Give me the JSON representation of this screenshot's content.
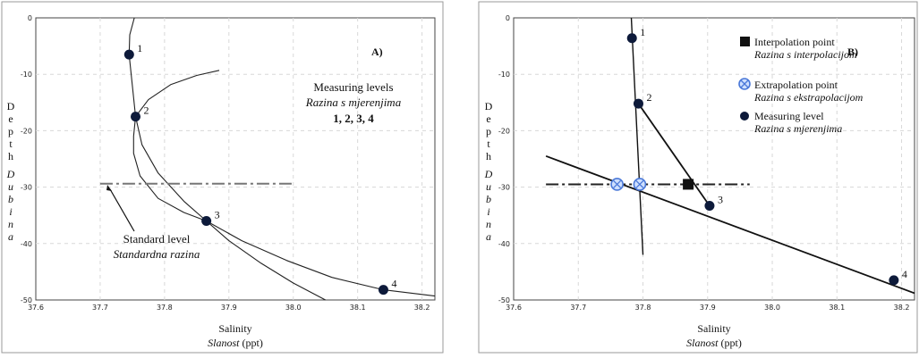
{
  "chart_data": [
    {
      "type": "line",
      "panel_label": "A)",
      "xlabel": "Salinity",
      "xlabel_alt": "Slanost",
      "xlabel_unit": "(ppt)",
      "ylabel": "Depth",
      "ylabel_alt": "Dubina",
      "xlim": [
        37.6,
        38.22
      ],
      "ylim": [
        0,
        50
      ],
      "y_inverted": true,
      "xticks": [
        "37.6",
        "37.7",
        "37.8",
        "37.9",
        "38.0",
        "38.1",
        "38.2"
      ],
      "yticks": [
        "0",
        "-10",
        "-20",
        "-30",
        "-40",
        "-50"
      ],
      "grid": true,
      "points": [
        {
          "label": "1",
          "x": 37.745,
          "y": 6.5
        },
        {
          "label": "2",
          "x": 37.755,
          "y": 17.5
        },
        {
          "label": "3",
          "x": 37.865,
          "y": 36.0
        },
        {
          "label": "4",
          "x": 38.14,
          "y": 48.2
        }
      ],
      "curves": [
        {
          "name": "profile",
          "x": [
            37.753,
            37.746,
            37.745,
            37.75,
            37.755,
            37.752,
            37.752,
            37.762,
            37.79,
            37.83,
            37.865,
            37.92,
            37.99,
            38.06,
            38.14,
            38.22
          ],
          "y": [
            0,
            3,
            6.5,
            12,
            17.5,
            21,
            24,
            28,
            32,
            34.5,
            36,
            39.5,
            43,
            46,
            48.2,
            49.3
          ]
        },
        {
          "name": "upper-branch",
          "x": [
            37.755,
            37.775,
            37.81,
            37.85,
            37.885
          ],
          "y": [
            17.5,
            14.5,
            11.8,
            10.2,
            9.3
          ]
        },
        {
          "name": "lower-branch",
          "x": [
            37.755,
            37.765,
            37.79,
            37.83,
            37.865,
            37.9,
            37.95,
            38.0,
            38.05
          ],
          "y": [
            17.5,
            22.5,
            27.5,
            32.5,
            36,
            39.5,
            43.5,
            47,
            50
          ]
        }
      ],
      "standard_level": {
        "y": 29.4,
        "x_range": [
          37.7,
          38.0
        ]
      },
      "annotations": {
        "measuring_title": "Measuring levels",
        "measuring_alt": "Razina s mjerenjima",
        "measuring_list": "1, 2, 3, 4",
        "standard_title": "Standard level",
        "standard_alt": "Standardna razina"
      }
    },
    {
      "type": "line",
      "panel_label": "B)",
      "xlabel": "Salinity",
      "xlabel_alt": "Slanost",
      "xlabel_unit": "(ppt)",
      "ylabel": "Depth",
      "ylabel_alt": "Dubina",
      "xlim": [
        37.6,
        38.22
      ],
      "ylim": [
        0,
        50
      ],
      "y_inverted": true,
      "xticks": [
        "37.6",
        "37.7",
        "37.8",
        "37.9",
        "38.0",
        "38.1",
        "38.2"
      ],
      "yticks": [
        "0",
        "-10",
        "-20",
        "-30",
        "-40",
        "-50"
      ],
      "grid": true,
      "points": [
        {
          "label": "1",
          "x": 37.783,
          "y": 3.6
        },
        {
          "label": "2",
          "x": 37.793,
          "y": 15.2
        },
        {
          "label": "3",
          "x": 37.903,
          "y": 33.3
        },
        {
          "label": "4",
          "x": 38.188,
          "y": 46.5
        }
      ],
      "segments": [
        {
          "name": "line-1-2",
          "x": [
            37.782,
            37.8
          ],
          "y": [
            0,
            42
          ]
        },
        {
          "name": "line-2-3",
          "x": [
            37.793,
            37.903
          ],
          "y": [
            15.2,
            33.3
          ]
        },
        {
          "name": "line-3-4",
          "x": [
            37.65,
            38.22
          ],
          "y": [
            24.5,
            48.8
          ]
        }
      ],
      "standard_level": {
        "y": 29.5,
        "x_range": [
          37.65,
          37.965
        ]
      },
      "interpolation_points": [
        {
          "x": 37.87,
          "y": 29.5
        }
      ],
      "extrapolation_points": [
        {
          "x": 37.76,
          "y": 29.5
        },
        {
          "x": 37.795,
          "y": 29.5
        }
      ],
      "legend": [
        {
          "marker": "filled-square",
          "title": "Interpolation point",
          "alt": "Razina s interpolacijom"
        },
        {
          "marker": "hatched-circle",
          "title": "Extrapolation point",
          "alt": "Razina s ekstrapolacijom"
        },
        {
          "marker": "filled-circle",
          "title": "Measuring level",
          "alt": "Razina s mjerenjima"
        }
      ],
      "legend_position": "top-right"
    }
  ]
}
